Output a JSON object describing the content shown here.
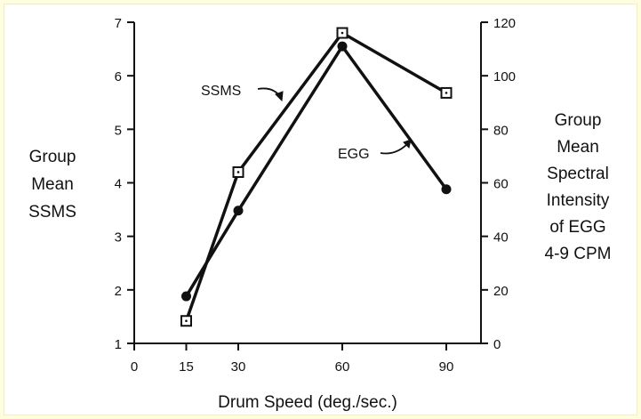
{
  "chart_data": {
    "type": "line",
    "x": [
      15,
      30,
      60,
      90
    ],
    "xlim": [
      0,
      100
    ],
    "xticks": [
      0,
      15,
      30,
      60,
      90
    ],
    "xlabel": "Drum Speed (deg./sec.)",
    "ylabel_left": [
      "Group",
      "Mean",
      "SSMS"
    ],
    "ylabel_right": [
      "Group",
      "Mean",
      "Spectral",
      "Intensity",
      "of EGG",
      "4-9 CPM"
    ],
    "ylim_left": [
      1,
      7
    ],
    "yticks_left": [
      1,
      2,
      3,
      4,
      5,
      6,
      7
    ],
    "ylim_right": [
      0,
      120
    ],
    "yticks_right": [
      0,
      20,
      40,
      60,
      80,
      100,
      120
    ],
    "grid": false,
    "series": [
      {
        "name": "SSMS",
        "axis": "left",
        "marker": "open-square-dot",
        "values": [
          1.42,
          4.2,
          6.8,
          5.68
        ]
      },
      {
        "name": "EGG",
        "axis": "left",
        "marker": "filled-circle",
        "values": [
          1.88,
          3.48,
          6.55,
          3.88
        ]
      }
    ],
    "annotations": [
      "SSMS",
      "EGG"
    ]
  },
  "colors": {
    "background": "#fefde0",
    "plot_ink": "#111111"
  }
}
